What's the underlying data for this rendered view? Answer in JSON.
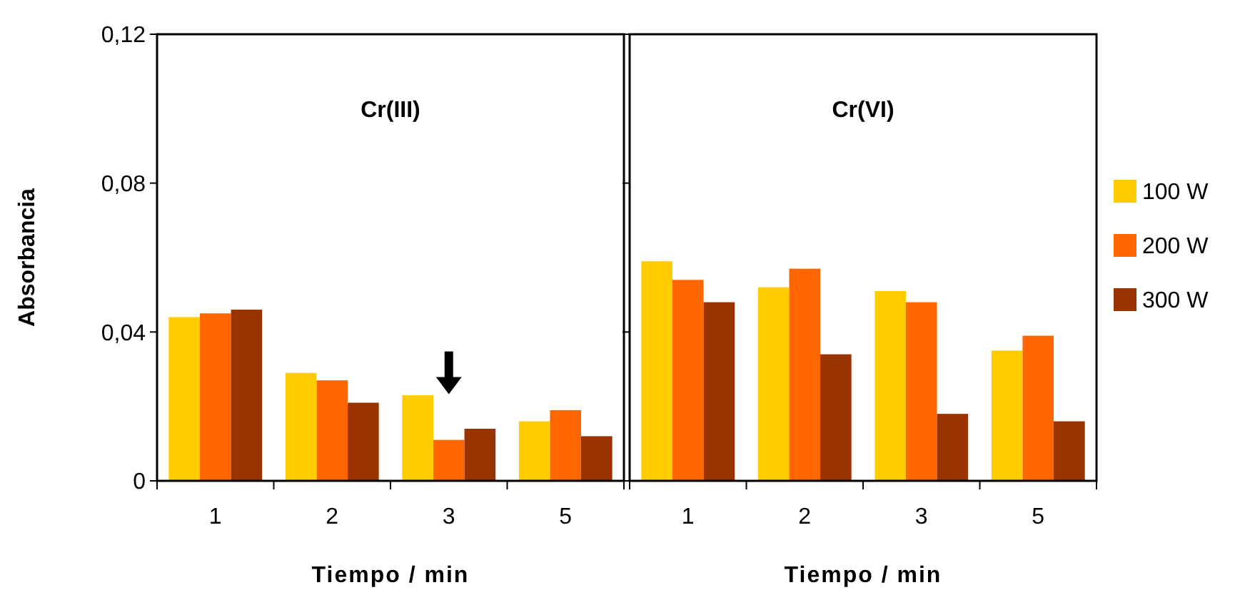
{
  "chart_data": [
    {
      "type": "bar",
      "title": "Cr(III)",
      "xlabel": "Tiempo / min",
      "ylabel": "Absorbancia",
      "categories": [
        "1",
        "2",
        "3",
        "5"
      ],
      "series": [
        {
          "color": "#ffcc00",
          "values": [
            0.044,
            0.029,
            0.023,
            0.016
          ]
        },
        {
          "color": "#ff6600",
          "values": [
            0.045,
            0.027,
            0.011,
            0.019
          ]
        },
        {
          "color": "#993300",
          "values": [
            0.046,
            0.021,
            0.014,
            0.012
          ]
        }
      ],
      "ylim": [
        0,
        0.12
      ],
      "yticks": [
        {
          "value": 0,
          "label": "0"
        },
        {
          "value": 0.04,
          "label": "0,04"
        },
        {
          "value": 0.08,
          "label": "0,08"
        },
        {
          "value": 0.12,
          "label": "0,12"
        }
      ]
    },
    {
      "type": "bar",
      "title": "Cr(VI)",
      "xlabel": "Tiempo / min",
      "categories": [
        "1",
        "2",
        "3",
        "5"
      ],
      "series": [
        {
          "name": "100 W",
          "color": "#ffcc00",
          "values": [
            0.059,
            0.052,
            0.051,
            0.035
          ]
        },
        {
          "name": "200 W",
          "color": "#ff6600",
          "values": [
            0.054,
            0.057,
            0.048,
            0.039
          ]
        },
        {
          "name": "300 W",
          "color": "#993300",
          "values": [
            0.048,
            0.034,
            0.018,
            0.016
          ]
        }
      ],
      "ylim": [
        0,
        0.12
      ],
      "yticks": [
        {
          "value": 0,
          "label": null
        },
        {
          "value": 0.04,
          "label": null
        },
        {
          "value": 0.08,
          "label": null
        },
        {
          "value": 0.12,
          "label": null
        }
      ],
      "tick_labels": "x",
      "legend": "right"
    }
  ]
}
